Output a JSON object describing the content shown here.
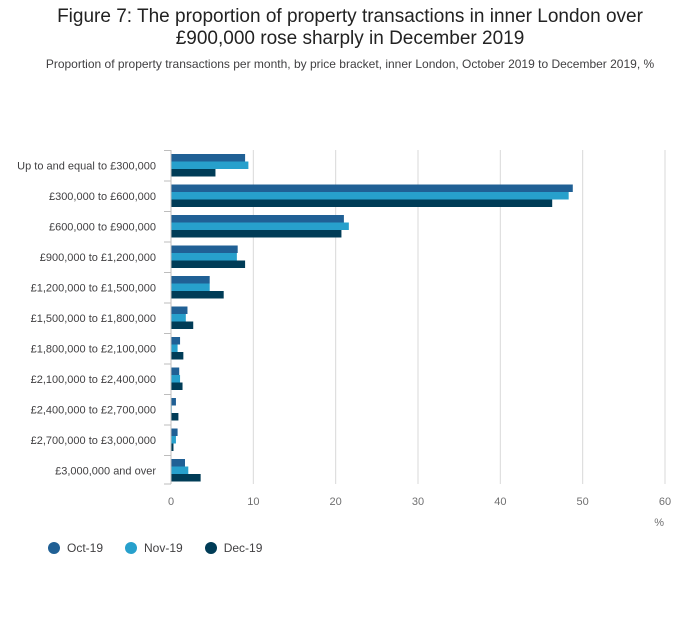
{
  "header": {
    "title_line1": "Figure 7: The proportion of property transactions in inner London over",
    "title_line2": "£900,000 rose sharply in December 2019",
    "subtitle": "Proportion of property transactions per month, by price bracket, inner London, October 2019 to December 2019, %"
  },
  "chart_data": {
    "type": "bar",
    "orientation": "horizontal",
    "title": "Figure 7: The proportion of property transactions in inner London over £900,000 rose sharply in December 2019",
    "subtitle": "Proportion of property transactions per month, by price bracket, inner London, October 2019 to December 2019, %",
    "categories": [
      "Up to and equal to £300,000",
      "£300,000 to £600,000",
      "£600,000 to £900,000",
      "£900,000 to £1,200,000",
      "£1,200,000 to £1,500,000",
      "£1,500,000 to £1,800,000",
      "£1,800,000 to £2,100,000",
      "£2,100,000 to £2,400,000",
      "£2,400,000 to £2,700,000",
      "£2,700,000 to £3,000,000",
      "£3,000,000 and over"
    ],
    "series": [
      {
        "name": "Oct-19",
        "color": "#206095",
        "values": [
          9.0,
          48.8,
          21.0,
          8.1,
          4.7,
          2.0,
          1.1,
          1.0,
          0.6,
          0.8,
          1.7
        ]
      },
      {
        "name": "Nov-19",
        "color": "#27A0CC",
        "values": [
          9.4,
          48.3,
          21.6,
          8.0,
          4.7,
          1.8,
          0.8,
          1.1,
          0.1,
          0.6,
          2.1
        ]
      },
      {
        "name": "Dec-19",
        "color": "#003C57",
        "values": [
          5.4,
          46.3,
          20.7,
          9.0,
          6.4,
          2.7,
          1.5,
          1.4,
          0.9,
          0.3,
          3.6
        ]
      }
    ],
    "xlim": [
      0,
      60
    ],
    "xticks": [
      0,
      10,
      20,
      30,
      40,
      50,
      60
    ],
    "xlabel": "%",
    "grid": true,
    "legend_position": "bottom-left"
  }
}
